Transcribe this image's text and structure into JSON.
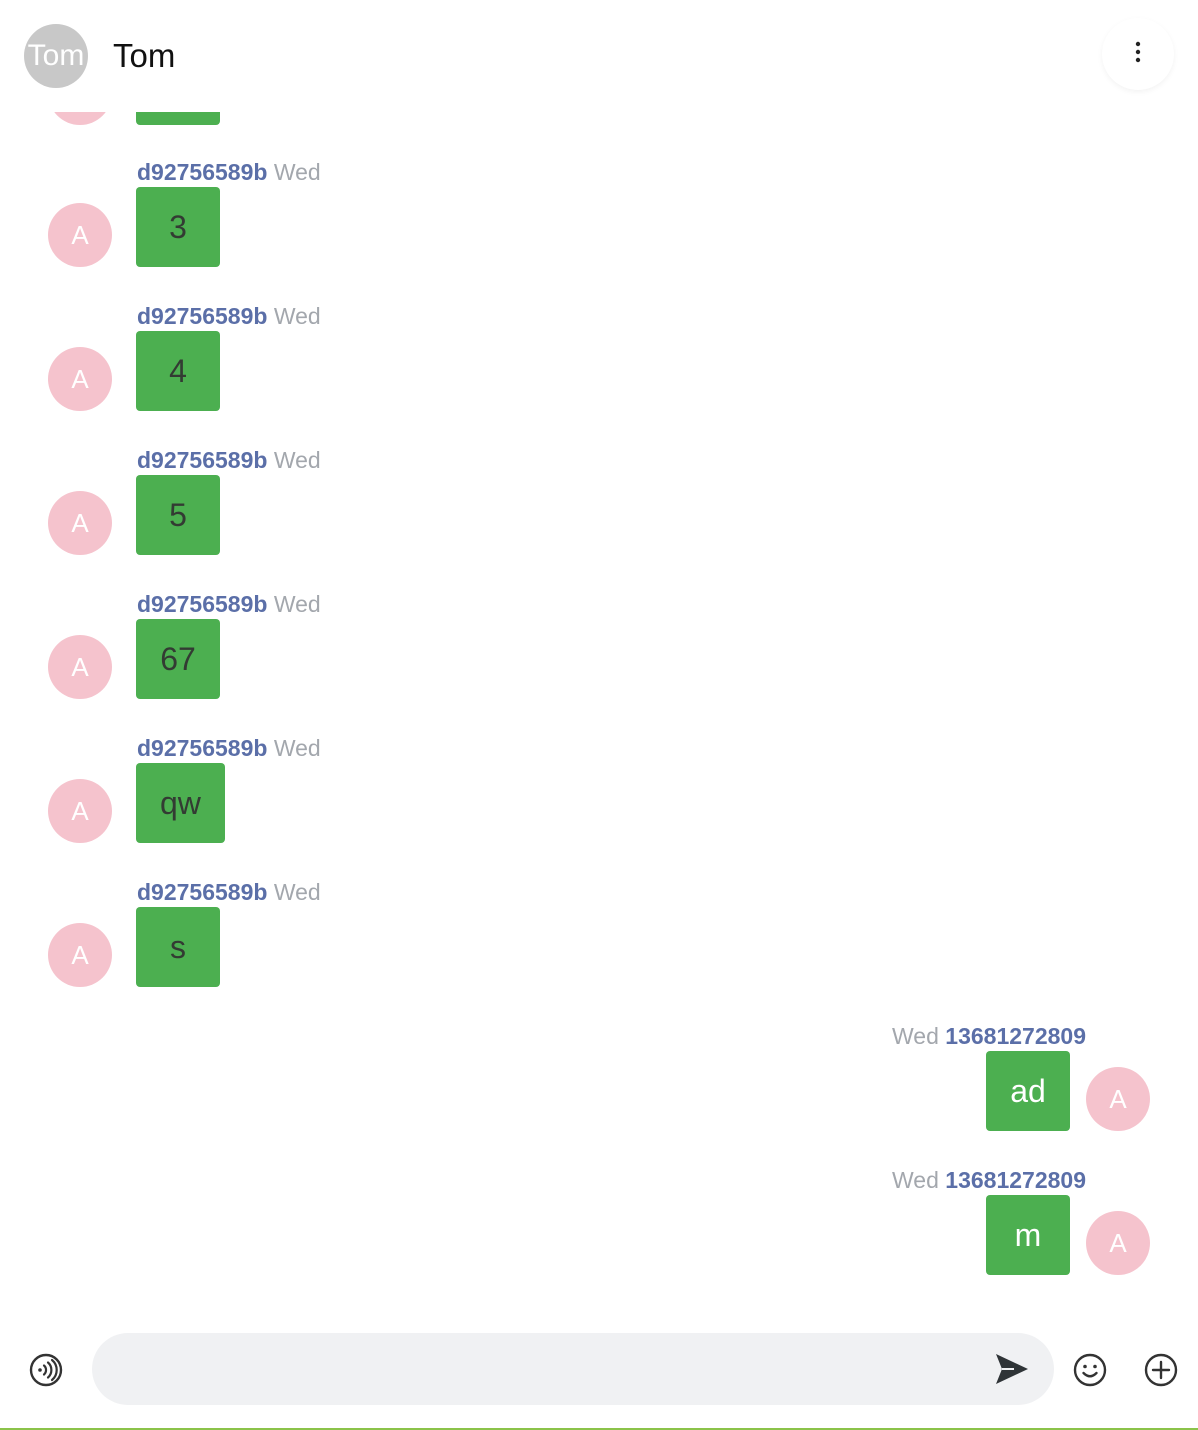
{
  "header": {
    "avatar_text": "Tom",
    "title": "Tom",
    "more_icon": "more-vertical-icon"
  },
  "messages": [
    {
      "side": "left",
      "sender": "d92756589b",
      "time": "Wed",
      "text": "3",
      "avatar": "A"
    },
    {
      "side": "left",
      "sender": "d92756589b",
      "time": "Wed",
      "text": "4",
      "avatar": "A"
    },
    {
      "side": "left",
      "sender": "d92756589b",
      "time": "Wed",
      "text": "5",
      "avatar": "A"
    },
    {
      "side": "left",
      "sender": "d92756589b",
      "time": "Wed",
      "text": "67",
      "avatar": "A"
    },
    {
      "side": "left",
      "sender": "d92756589b",
      "time": "Wed",
      "text": "qw",
      "avatar": "A"
    },
    {
      "side": "left",
      "sender": "d92756589b",
      "time": "Wed",
      "text": "s",
      "avatar": "A"
    },
    {
      "side": "right",
      "sender": "13681272809",
      "time": "Wed",
      "text": "ad",
      "avatar": "A"
    },
    {
      "side": "right",
      "sender": "13681272809",
      "time": "Wed",
      "text": "m",
      "avatar": "A"
    }
  ],
  "input_bar": {
    "placeholder": "",
    "value": "",
    "icons": [
      "voice-icon",
      "send-icon",
      "emoji-icon",
      "add-icon"
    ]
  },
  "colors": {
    "bubble": "#4caf50",
    "avatar": "#f5c3cd",
    "header_avatar": "#c8c8c8",
    "sender": "#5b6fa8",
    "time": "#a3a7ad",
    "input_bg": "#f0f1f3"
  }
}
